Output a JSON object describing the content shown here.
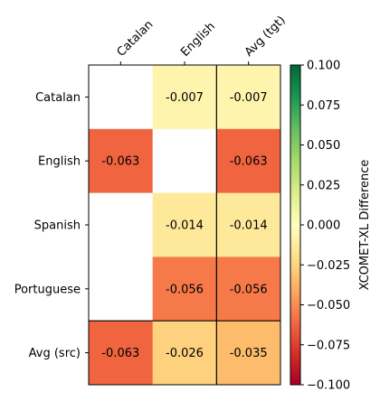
{
  "chart_data": {
    "type": "heatmap",
    "x_categories": [
      "Catalan",
      "English",
      "Avg (tgt)"
    ],
    "y_categories": [
      "Catalan",
      "English",
      "Spanish",
      "Portuguese",
      "Avg (src)"
    ],
    "values": [
      [
        null,
        -0.007,
        -0.007
      ],
      [
        -0.063,
        null,
        -0.063
      ],
      [
        null,
        -0.014,
        -0.014
      ],
      [
        null,
        -0.056,
        -0.056
      ],
      [
        -0.063,
        -0.026,
        -0.035
      ]
    ],
    "value_labels": [
      [
        "",
        "-0.007",
        "-0.007"
      ],
      [
        "-0.063",
        "",
        "-0.063"
      ],
      [
        "",
        "-0.014",
        "-0.014"
      ],
      [
        "",
        "-0.056",
        "-0.056"
      ],
      [
        "-0.063",
        "-0.026",
        "-0.035"
      ]
    ],
    "colorbar": {
      "label": "XCOMET-XL Difference",
      "range": [
        -0.1,
        0.1
      ],
      "colormap": "RdYlGn",
      "ticks": [
        0.1,
        0.075,
        0.05,
        0.025,
        0.0,
        -0.025,
        -0.05,
        -0.075,
        -0.1
      ],
      "tick_labels": [
        "0.100",
        "0.075",
        "0.050",
        "0.025",
        "0.000",
        "−0.025",
        "−0.050",
        "−0.075",
        "−0.100"
      ]
    },
    "x_axis_position": "top",
    "separators": "last row and last column outlined"
  }
}
